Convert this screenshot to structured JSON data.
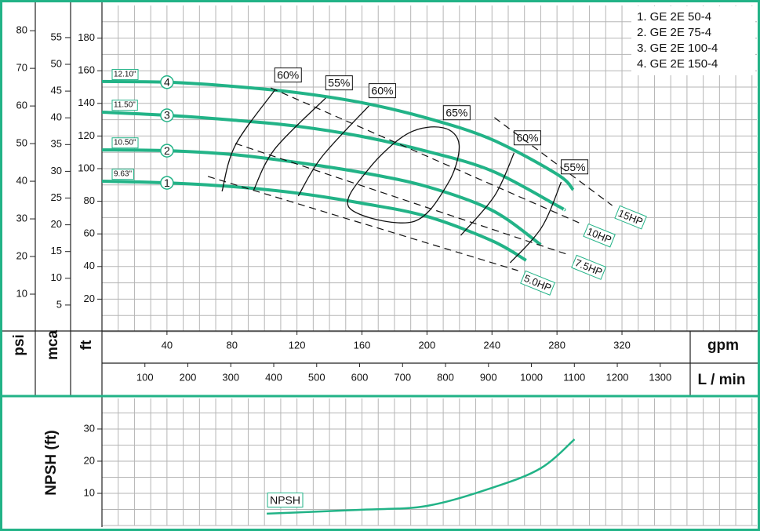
{
  "chart_data": {
    "type": "line",
    "color": "#22b387",
    "y_psi_label": "psi",
    "y_mca_label": "mca",
    "y_label": "ft",
    "x_label": "gpm",
    "x2_label": "L / min",
    "xlim": [
      0,
      403
    ],
    "xticks": [
      40,
      80,
      120,
      160,
      200,
      240,
      280,
      320
    ],
    "x2lim": [
      0,
      1525
    ],
    "x2ticks": [
      100,
      200,
      300,
      400,
      500,
      600,
      700,
      800,
      900,
      1000,
      1100,
      1200,
      1300
    ],
    "ylim": [
      0,
      200
    ],
    "yticks": [
      20,
      40,
      60,
      80,
      100,
      120,
      140,
      160,
      180
    ],
    "psi_lim": [
      0,
      86.7
    ],
    "psi_ticks": [
      10,
      20,
      30,
      40,
      50,
      60,
      70,
      80
    ],
    "mca_lim": [
      0,
      61
    ],
    "mca_ticks": [
      5,
      10,
      15,
      20,
      25,
      30,
      35,
      40,
      45,
      50,
      55
    ],
    "xgrid": [
      0,
      10,
      20,
      30,
      40,
      50,
      60,
      70,
      80,
      90,
      100,
      110,
      120,
      130,
      140,
      150,
      160,
      170,
      180,
      190,
      200,
      210,
      220,
      230,
      240,
      250,
      260,
      270,
      280,
      290,
      300,
      310,
      320,
      330,
      340,
      350,
      360,
      370,
      380,
      390,
      400
    ],
    "ygrid": [
      0,
      10,
      20,
      30,
      40,
      50,
      60,
      70,
      80,
      90,
      100,
      110,
      120,
      130,
      140,
      150,
      160,
      170,
      180,
      190
    ],
    "series": [
      {
        "name": "1. GE 2E 50-4",
        "marker": "1",
        "diameter": "9.63\"",
        "x": [
          0,
          40,
          80,
          120,
          160,
          200,
          240,
          261
        ],
        "values": [
          92.3,
          91.3,
          89,
          85,
          78.8,
          70.7,
          55.8,
          43.8
        ]
      },
      {
        "name": "2. GE 2E 75-4",
        "marker": "2",
        "diameter": "10.50\"",
        "x": [
          0,
          40,
          80,
          120,
          160,
          200,
          240,
          270
        ],
        "values": [
          111.5,
          111,
          108.7,
          103.8,
          97.6,
          89,
          74.5,
          53.4
        ]
      },
      {
        "name": "3. GE 2E 100-4",
        "marker": "3",
        "diameter": "11.50\"",
        "x": [
          0,
          40,
          80,
          120,
          160,
          200,
          240,
          280,
          284
        ],
        "values": [
          134.6,
          132.7,
          129.8,
          126,
          119.7,
          110.6,
          98.6,
          77.4,
          75
        ]
      },
      {
        "name": "4. GE 2E 150-4",
        "marker": "4",
        "diameter": "12.10\"",
        "x": [
          0,
          40,
          80,
          120,
          160,
          200,
          240,
          280,
          290
        ],
        "values": [
          153.4,
          153,
          150.5,
          146.6,
          140.4,
          131,
          117.8,
          96.6,
          87
        ]
      }
    ],
    "efficiency": [
      {
        "label": "60%",
        "x": [
          73.9,
          82.1,
          106.3
        ],
        "values": [
          86.1,
          114.4,
          148.1
        ]
      },
      {
        "label": "55%",
        "x": [
          93.2,
          106.3,
          137.7
        ],
        "values": [
          86.5,
          112,
          143.3
        ]
      },
      {
        "label": "60%",
        "x": [
          120.8,
          135.3,
          164.3
        ],
        "values": [
          83.2,
          107.2,
          138.5
        ]
      },
      {
        "label": "65%",
        "x": [
          219.8,
          212.6,
          190.8,
          152.2,
          164.3,
          188.4,
          210.1
        ],
        "values": [
          114.4,
          90.4,
          67.3,
          76,
          100,
          121.6,
          125
        ],
        "closed": true
      },
      {
        "label": "60%",
        "x": [
          220.8,
          241.5,
          253.6
        ],
        "values": [
          59.1,
          83.2,
          109.6
        ]
      },
      {
        "label": "55%",
        "x": [
          251.2,
          270.5,
          282.6
        ],
        "values": [
          42.3,
          63.9,
          91.8
        ]
      }
    ],
    "power": [
      {
        "label": "15HP",
        "x": [
          241.5,
          314
        ],
        "values": [
          131.3,
          77.4
        ]
      },
      {
        "label": "10HP",
        "x": [
          103.9,
          294.7
        ],
        "values": [
          149.5,
          66.3
        ]
      },
      {
        "label": "7.5HP",
        "x": [
          82.1,
          287.4
        ],
        "values": [
          115.4,
          47.1
        ]
      },
      {
        "label": "5.0HP",
        "x": [
          65.2,
          256
        ],
        "values": [
          95.2,
          37.5
        ]
      }
    ],
    "npsh": {
      "label": "NPSH",
      "y_label": "NPSH (ft)",
      "ylim": [
        0,
        39.5
      ],
      "yticks": [
        10,
        20,
        30
      ],
      "ygrid": [
        0,
        5,
        10,
        15,
        20,
        25,
        30,
        35
      ],
      "x": [
        101.4,
        160,
        200,
        240,
        270,
        290.8
      ],
      "values": [
        3.7,
        4.9,
        6.1,
        11.7,
        17.8,
        26.8
      ]
    }
  }
}
